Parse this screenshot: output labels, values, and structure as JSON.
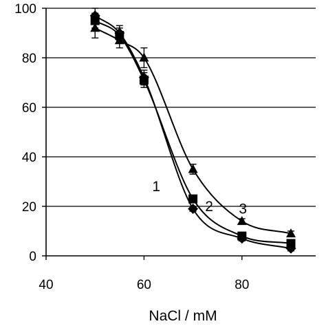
{
  "chart_data": {
    "type": "scatter",
    "title": "",
    "xlabel": "NaCl / mM",
    "ylabel": "",
    "xlim": [
      40,
      100
    ],
    "ylim": [
      0,
      100
    ],
    "xticks": [
      40,
      60,
      80
    ],
    "yticks": [
      0,
      20,
      40,
      60,
      80,
      100
    ],
    "grid": "horizontal",
    "legend": "none",
    "series": [
      {
        "label": "1",
        "marker": "diamond",
        "x": [
          50,
          55,
          60,
          70,
          80,
          90
        ],
        "y": [
          97,
          90,
          72,
          19,
          7,
          3
        ],
        "yerr": [
          3,
          3,
          3,
          1,
          1,
          1
        ]
      },
      {
        "label": "2",
        "marker": "square",
        "x": [
          50,
          55,
          60,
          70,
          80,
          90
        ],
        "y": [
          95,
          89,
          71,
          23,
          8,
          5
        ],
        "yerr": [
          3,
          3,
          3,
          1,
          1,
          1
        ]
      },
      {
        "label": "3",
        "marker": "triangle",
        "x": [
          50,
          55,
          60,
          70,
          80,
          90
        ],
        "y": [
          92,
          87,
          80,
          35,
          14,
          9
        ],
        "yerr": [
          4,
          3,
          4,
          2,
          1,
          1
        ]
      }
    ],
    "curve_labels": [
      {
        "text": "1",
        "x": 62.5,
        "y": 28
      },
      {
        "text": "2",
        "x": 73.3,
        "y": 20
      },
      {
        "text": "3",
        "x": 80.2,
        "y": 19
      }
    ]
  }
}
